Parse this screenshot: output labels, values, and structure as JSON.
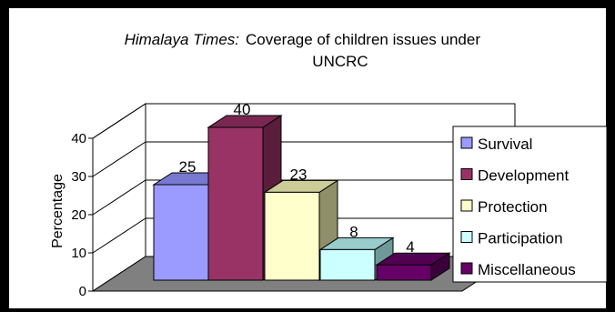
{
  "chart_data": {
    "type": "bar",
    "title_source": "Himalaya Times:",
    "title_line1": "Coverage of children issues under",
    "title_line2": "UNCRC",
    "ylabel": "Percentage",
    "ylim": [
      0,
      40
    ],
    "yticks": [
      0,
      10,
      20,
      30,
      40
    ],
    "grid": true,
    "legend_position": "right",
    "three_d": true,
    "series": [
      {
        "name": "Survival",
        "value": 25,
        "color": "#9a9aff",
        "top": "#7878d0",
        "side": "#5c5ca8"
      },
      {
        "name": "Development",
        "value": 40,
        "color": "#993366",
        "top": "#7a2852",
        "side": "#5a1e3c"
      },
      {
        "name": "Protection",
        "value": 23,
        "color": "#ffffcc",
        "top": "#cccc99",
        "side": "#8f8f6a"
      },
      {
        "name": "Participation",
        "value": 8,
        "color": "#ccffff",
        "top": "#99cccc",
        "side": "#6f9999"
      },
      {
        "name": "Miscellaneous",
        "value": 4,
        "color": "#660066",
        "top": "#520052",
        "side": "#3a003a"
      }
    ]
  }
}
